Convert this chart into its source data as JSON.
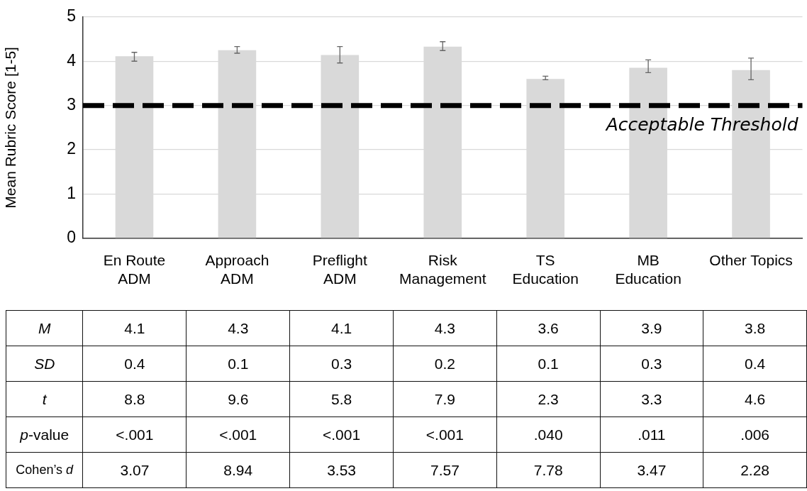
{
  "chart_data": {
    "type": "bar",
    "ylabel": "Mean Rubric Score [1-5]",
    "categories": [
      "En Route\nADM",
      "Approach\nADM",
      "Preflight\nADM",
      "Risk\nManagement",
      "TS\nEducation",
      "MB\nEducation",
      "Other Topics"
    ],
    "values": [
      4.11,
      4.25,
      4.14,
      4.33,
      3.6,
      3.85,
      3.8
    ],
    "value_labels": [
      "4.1",
      "4.3",
      "4.1",
      "4.3",
      "3.6",
      "3.9",
      "3.8"
    ],
    "errors": [
      [
        4.0,
        4.2
      ],
      [
        4.18,
        4.33
      ],
      [
        3.96,
        4.33
      ],
      [
        4.24,
        4.44
      ],
      [
        3.58,
        3.66
      ],
      [
        3.74,
        4.03
      ],
      [
        3.58,
        4.07
      ]
    ],
    "color": "#d9d9d9",
    "ylim": [
      0,
      5
    ],
    "yticks": [
      0,
      1,
      2,
      3,
      4,
      5
    ],
    "grid": "y",
    "legend": false,
    "ref_lines": [
      {
        "axis": "y",
        "value": 3,
        "label": "Acceptable Threshold",
        "color": "#000000",
        "line_style": "dashed"
      }
    ],
    "annotations": [
      "M",
      "SD",
      "0.4",
      "0.1",
      "0.3",
      "0.2",
      "0.1",
      "0.3",
      "0.4",
      "t",
      "8.8",
      "9.6",
      "5.8",
      "7.9",
      "2.3",
      "3.3",
      "4.6",
      "p-value",
      "<.001",
      "<.001",
      "<.001",
      "<.001",
      ".040",
      ".011",
      ".006",
      "Cohen’s d",
      "3.07",
      "8.94",
      "3.53",
      "7.57",
      "7.78",
      "3.47",
      "2.28"
    ]
  }
}
